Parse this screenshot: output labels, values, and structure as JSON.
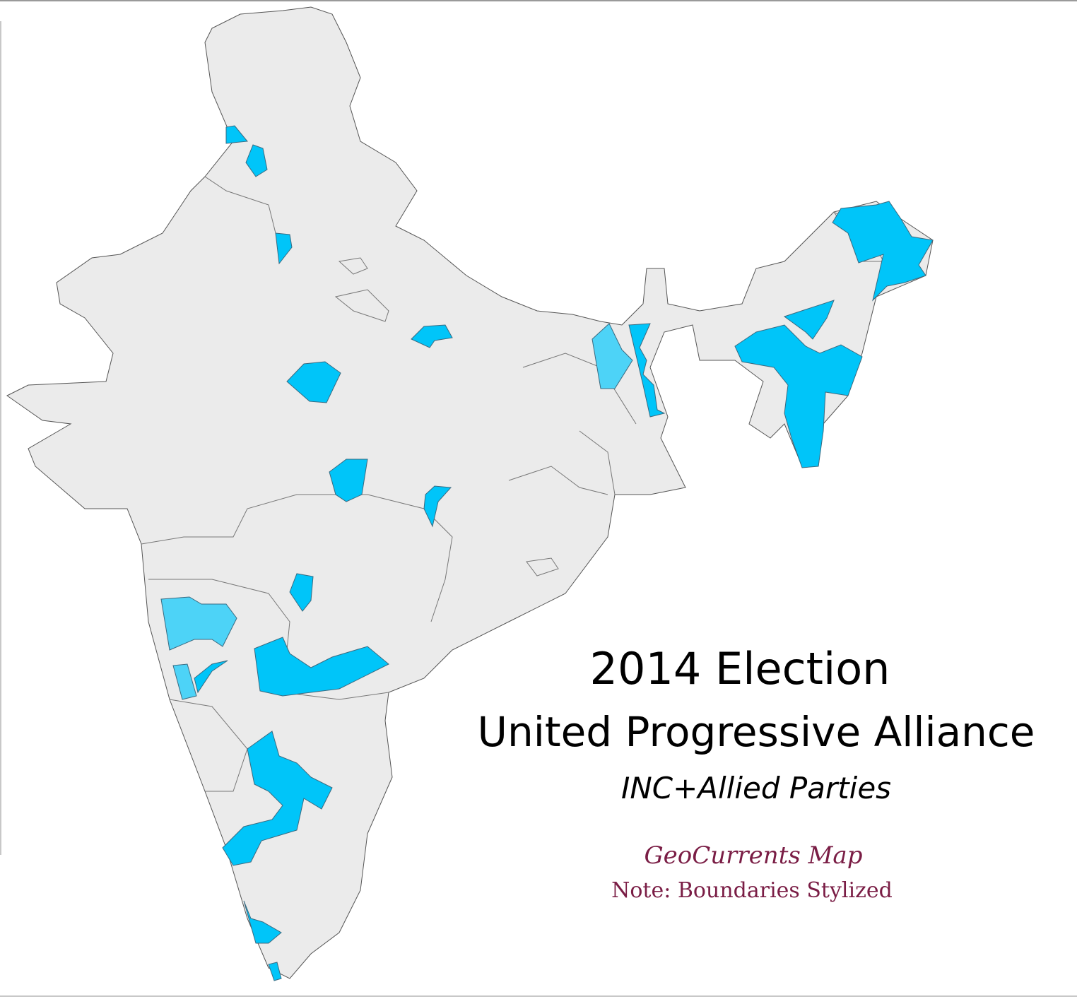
{
  "map": {
    "title": "2014 Election",
    "subtitle": "United Progressive Alliance",
    "caption": "INC+Allied Parties",
    "credit": "GeoCurrents Map",
    "note": "Note: Boundaries Stylized"
  }
}
